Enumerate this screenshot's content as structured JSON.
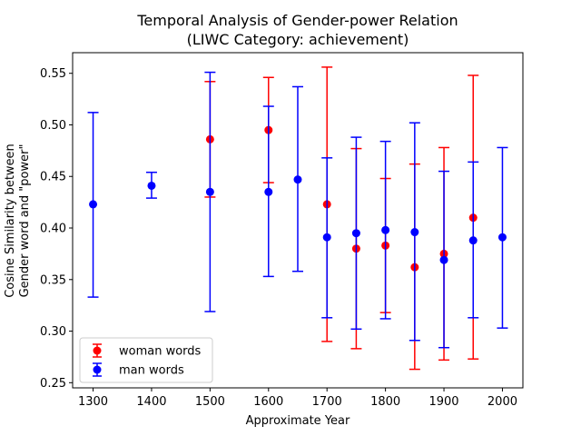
{
  "chart_data": {
    "type": "scatter",
    "title": [
      "Temporal Analysis of Gender-power Relation",
      "(LIWC Category: achievement)"
    ],
    "xlabel": "Approximate Year",
    "ylabel": [
      "Cosine Similarity between",
      "Gender word and \"power\""
    ],
    "xlim": [
      1265,
      2035
    ],
    "ylim": [
      0.245,
      0.57
    ],
    "xticks": [
      1300,
      1400,
      1500,
      1600,
      1700,
      1800,
      1900,
      2000
    ],
    "yticks": [
      0.25,
      0.3,
      0.35,
      0.4,
      0.45,
      0.5,
      0.55
    ],
    "ytick_labels": [
      "0.25",
      "0.30",
      "0.35",
      "0.40",
      "0.45",
      "0.50",
      "0.55"
    ],
    "grid": false,
    "legend_placement": "lower-left",
    "series": [
      {
        "name": "woman words",
        "color": "#ff0000",
        "points": [
          {
            "x": 1500,
            "y": 0.486,
            "low": 0.43,
            "high": 0.542
          },
          {
            "x": 1600,
            "y": 0.495,
            "low": 0.444,
            "high": 0.546
          },
          {
            "x": 1700,
            "y": 0.423,
            "low": 0.29,
            "high": 0.556
          },
          {
            "x": 1750,
            "y": 0.38,
            "low": 0.283,
            "high": 0.477
          },
          {
            "x": 1800,
            "y": 0.383,
            "low": 0.318,
            "high": 0.448
          },
          {
            "x": 1850,
            "y": 0.362,
            "low": 0.263,
            "high": 0.462
          },
          {
            "x": 1900,
            "y": 0.375,
            "low": 0.272,
            "high": 0.478
          },
          {
            "x": 1950,
            "y": 0.41,
            "low": 0.273,
            "high": 0.548
          }
        ]
      },
      {
        "name": "man words",
        "color": "#0000ff",
        "points": [
          {
            "x": 1300,
            "y": 0.423,
            "low": 0.333,
            "high": 0.512
          },
          {
            "x": 1400,
            "y": 0.441,
            "low": 0.429,
            "high": 0.454
          },
          {
            "x": 1500,
            "y": 0.435,
            "low": 0.319,
            "high": 0.551
          },
          {
            "x": 1600,
            "y": 0.435,
            "low": 0.353,
            "high": 0.518
          },
          {
            "x": 1650,
            "y": 0.447,
            "low": 0.358,
            "high": 0.537
          },
          {
            "x": 1700,
            "y": 0.391,
            "low": 0.313,
            "high": 0.468
          },
          {
            "x": 1750,
            "y": 0.395,
            "low": 0.302,
            "high": 0.488
          },
          {
            "x": 1800,
            "y": 0.398,
            "low": 0.312,
            "high": 0.484
          },
          {
            "x": 1850,
            "y": 0.396,
            "low": 0.291,
            "high": 0.502
          },
          {
            "x": 1900,
            "y": 0.369,
            "low": 0.284,
            "high": 0.455
          },
          {
            "x": 1950,
            "y": 0.388,
            "low": 0.313,
            "high": 0.464
          },
          {
            "x": 2000,
            "y": 0.391,
            "low": 0.303,
            "high": 0.478
          }
        ]
      }
    ]
  }
}
